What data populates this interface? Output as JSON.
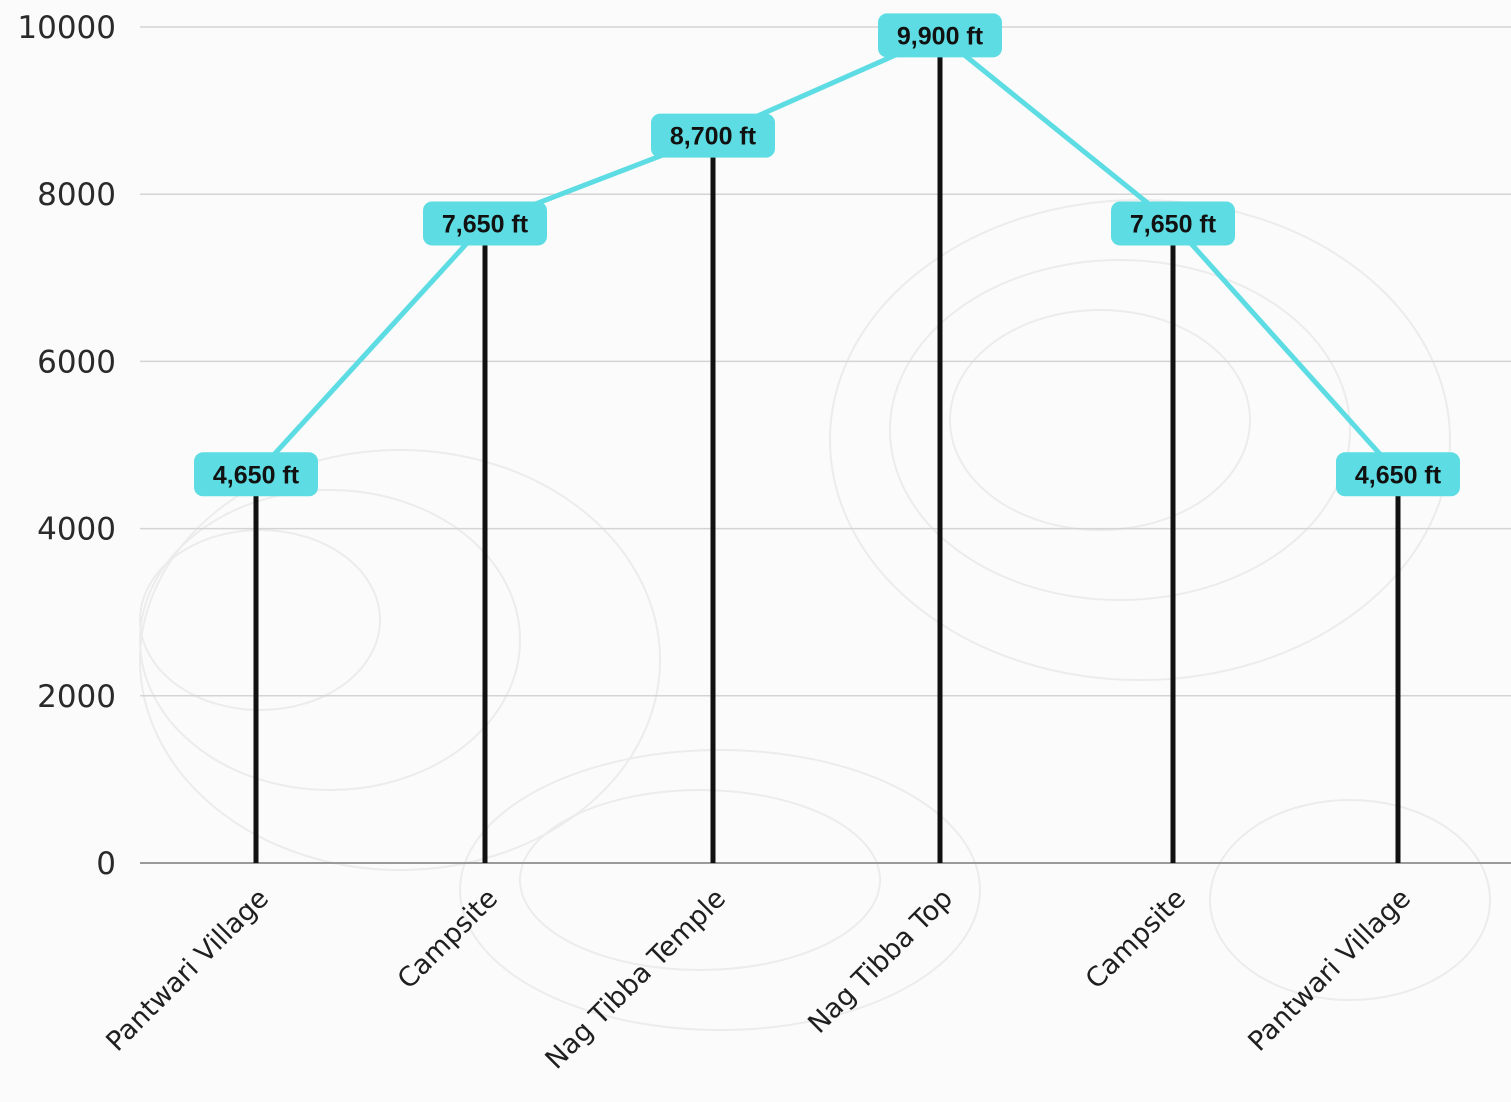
{
  "chart_data": {
    "type": "line",
    "title": "",
    "xlabel": "",
    "ylabel": "",
    "ylim": [
      0,
      10000
    ],
    "y_ticks": [
      "0",
      "2000",
      "4000",
      "6000",
      "8000",
      "10000"
    ],
    "categories": [
      "Pantwari Village",
      "Campsite",
      "Nag Tibba Temple",
      "Nag Tibba Top",
      "Campsite",
      "Pantwari Village"
    ],
    "series": [
      {
        "values": [
          4650,
          7650,
          8700,
          9900,
          7650,
          4650
        ],
        "labels": [
          "4,650 ft",
          "7,650 ft",
          "8,700 ft",
          "9,900 ft",
          "7,650 ft",
          "4,650 ft"
        ]
      }
    ],
    "stems": true,
    "grid": true,
    "legend": "none",
    "colors": {
      "line": "#5ddde3",
      "label_bg": "#5ddde3",
      "stem": "#111111",
      "grid": "#d4d4d4",
      "axis": "#9a9a9a"
    }
  }
}
